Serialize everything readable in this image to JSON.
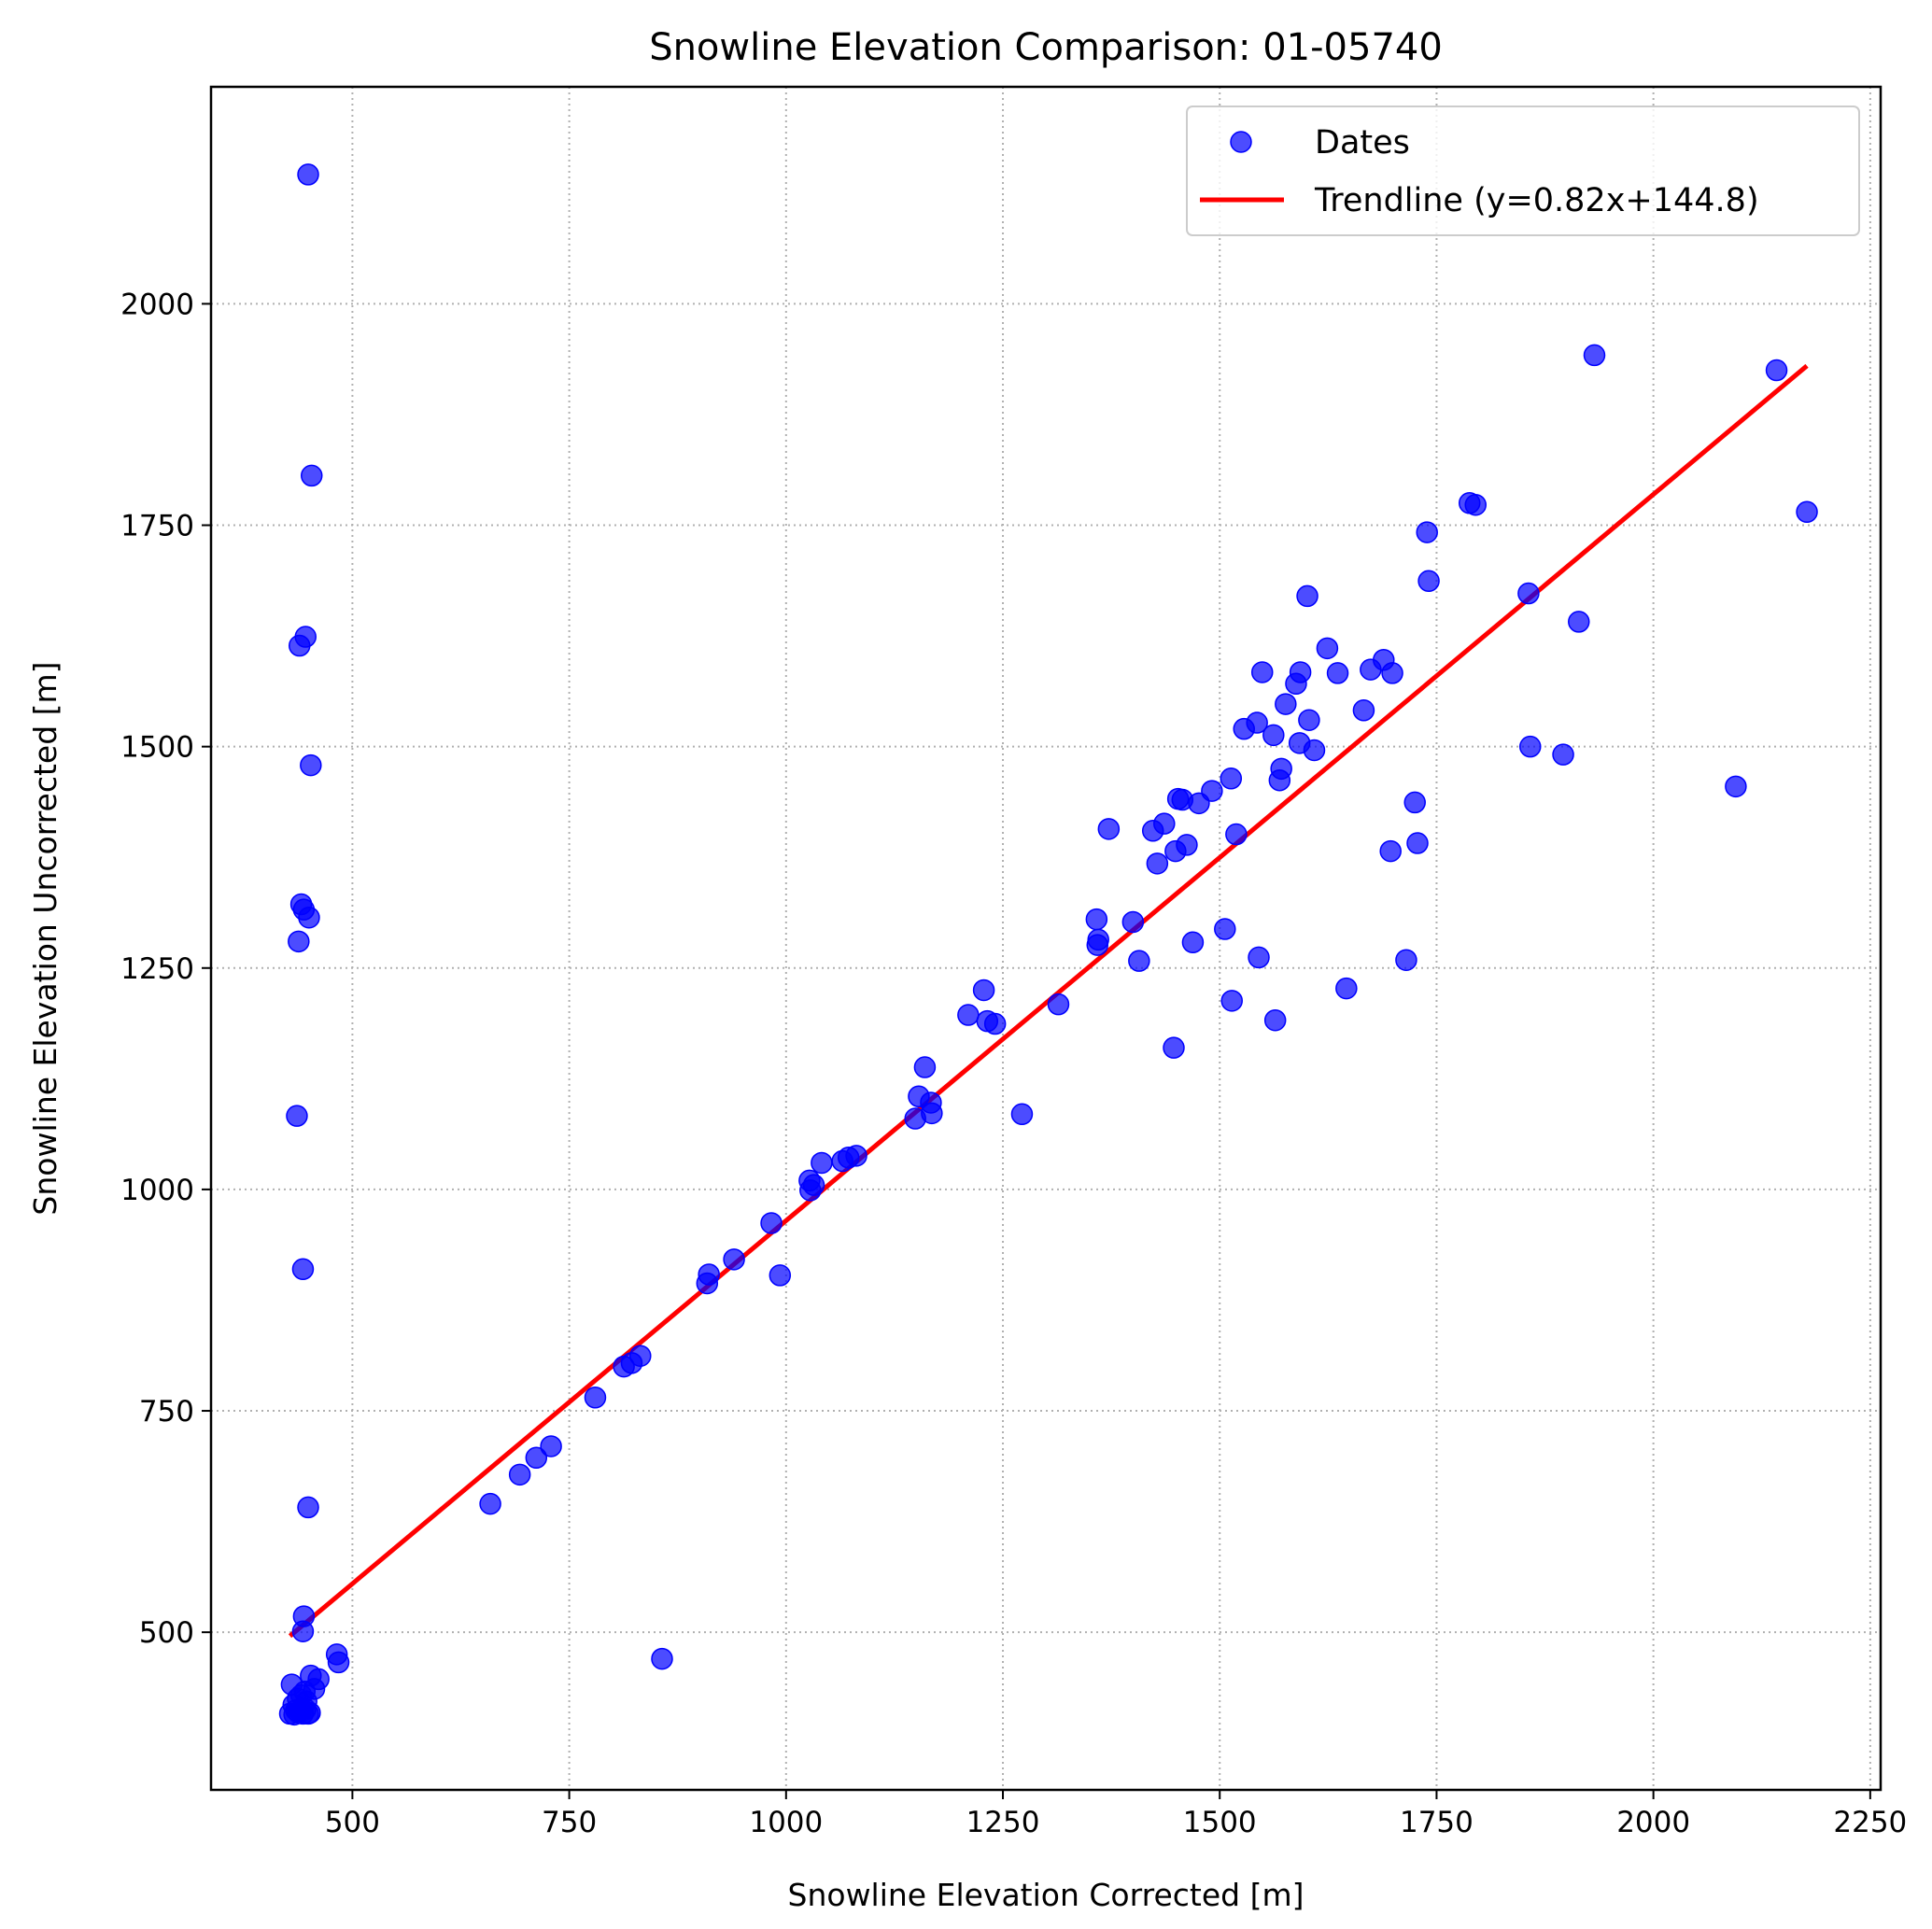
{
  "chart_data": {
    "type": "scatter",
    "title": "Snowline Elevation Comparison: 01-05740",
    "xlabel": "Snowline Elevation Corrected [m]",
    "ylabel": "Snowline Elevation Uncorrected [m]",
    "xlim": [
      337,
      2262
    ],
    "ylim": [
      322,
      2245
    ],
    "xticks": [
      500,
      750,
      1000,
      1250,
      1500,
      1750,
      2000,
      2250
    ],
    "yticks": [
      500,
      750,
      1000,
      1250,
      1500,
      1750,
      2000
    ],
    "grid": true,
    "legend_position": "top-right",
    "colors": {
      "points": "#0000ff",
      "trendline": "#ff0000"
    },
    "series": [
      {
        "name": "Dates",
        "kind": "scatter",
        "points": [
          [
            449,
            2146
          ],
          [
            453,
            1806
          ],
          [
            446,
            1624
          ],
          [
            439,
            1614
          ],
          [
            452,
            1479
          ],
          [
            441,
            1322
          ],
          [
            444,
            1316
          ],
          [
            450,
            1307
          ],
          [
            438,
            1280
          ],
          [
            436,
            1083
          ],
          [
            443,
            910
          ],
          [
            449,
            641
          ],
          [
            444,
            518
          ],
          [
            443,
            501
          ],
          [
            430,
            441
          ],
          [
            437,
            425
          ],
          [
            441,
            429
          ],
          [
            445,
            433
          ],
          [
            447,
            422
          ],
          [
            452,
            451
          ],
          [
            461,
            447
          ],
          [
            456,
            436
          ],
          [
            432,
            418
          ],
          [
            435,
            412
          ],
          [
            440,
            411
          ],
          [
            446,
            413
          ],
          [
            451,
            409
          ],
          [
            428,
            408
          ],
          [
            433,
            407
          ],
          [
            438,
            409
          ],
          [
            443,
            408
          ],
          [
            449,
            408
          ],
          [
            482,
            475
          ],
          [
            484,
            466
          ],
          [
            857,
            470
          ],
          [
            659,
            645
          ],
          [
            693,
            678
          ],
          [
            712,
            697
          ],
          [
            729,
            710
          ],
          [
            780,
            765
          ],
          [
            813,
            800
          ],
          [
            822,
            804
          ],
          [
            832,
            812
          ],
          [
            909,
            894
          ],
          [
            911,
            904
          ],
          [
            940,
            921
          ],
          [
            983,
            962
          ],
          [
            993,
            903
          ],
          [
            1028,
            999
          ],
          [
            1027,
            1010
          ],
          [
            1032,
            1005
          ],
          [
            1041,
            1030
          ],
          [
            1065,
            1032
          ],
          [
            1072,
            1036
          ],
          [
            1081,
            1038
          ],
          [
            1149,
            1080
          ],
          [
            1153,
            1105
          ],
          [
            1160,
            1138
          ],
          [
            1167,
            1098
          ],
          [
            1168,
            1086
          ],
          [
            1210,
            1197
          ],
          [
            1228,
            1225
          ],
          [
            1232,
            1190
          ],
          [
            1241,
            1187
          ],
          [
            1272,
            1085
          ],
          [
            1314,
            1209
          ],
          [
            1358,
            1305
          ],
          [
            1359,
            1276
          ],
          [
            1360,
            1282
          ],
          [
            1372,
            1407
          ],
          [
            1400,
            1302
          ],
          [
            1407,
            1258
          ],
          [
            1423,
            1405
          ],
          [
            1428,
            1368
          ],
          [
            1436,
            1413
          ],
          [
            1447,
            1160
          ],
          [
            1449,
            1382
          ],
          [
            1452,
            1441
          ],
          [
            1457,
            1440
          ],
          [
            1462,
            1389
          ],
          [
            1469,
            1279
          ],
          [
            1476,
            1436
          ],
          [
            1491,
            1450
          ],
          [
            1506,
            1294
          ],
          [
            1513,
            1464
          ],
          [
            1514,
            1213
          ],
          [
            1519,
            1401
          ],
          [
            1528,
            1520
          ],
          [
            1543,
            1527
          ],
          [
            1545,
            1262
          ],
          [
            1549,
            1584
          ],
          [
            1562,
            1513
          ],
          [
            1564,
            1191
          ],
          [
            1569,
            1462
          ],
          [
            1571,
            1475
          ],
          [
            1576,
            1548
          ],
          [
            1588,
            1571
          ],
          [
            1592,
            1504
          ],
          [
            1593,
            1584
          ],
          [
            1601,
            1670
          ],
          [
            1603,
            1530
          ],
          [
            1609,
            1496
          ],
          [
            1624,
            1611
          ],
          [
            1636,
            1583
          ],
          [
            1646,
            1227
          ],
          [
            1666,
            1541
          ],
          [
            1674,
            1587
          ],
          [
            1689,
            1598
          ],
          [
            1699,
            1583
          ],
          [
            1697,
            1382
          ],
          [
            1715,
            1259
          ],
          [
            1725,
            1437
          ],
          [
            1728,
            1391
          ],
          [
            1739,
            1742
          ],
          [
            1741,
            1687
          ],
          [
            1788,
            1775
          ],
          [
            1795,
            1773
          ],
          [
            1856,
            1673
          ],
          [
            1858,
            1500
          ],
          [
            1896,
            1491
          ],
          [
            1914,
            1641
          ],
          [
            1932,
            1942
          ],
          [
            2095,
            1455
          ],
          [
            2142,
            1925
          ],
          [
            2177,
            1765
          ]
        ]
      },
      {
        "name": "Trendline (y=0.82x+144.8)",
        "kind": "line",
        "slope": 0.82,
        "intercept": 144.8,
        "x_range": [
          428,
          2177
        ]
      }
    ]
  }
}
